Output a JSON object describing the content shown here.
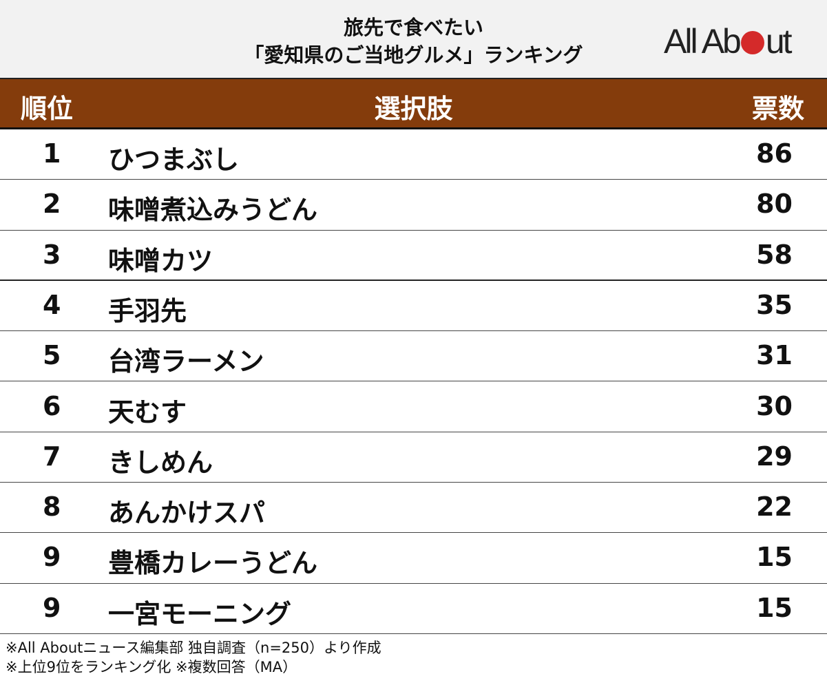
{
  "title": {
    "line1": "旅先で食べたい",
    "line2": "「愛知県のご当地グルメ」ランキング"
  },
  "logo": {
    "text_before": "All Ab",
    "text_after": "ut",
    "dot_color": "#d42a2a"
  },
  "colors": {
    "header_bg": "#843c0c",
    "title_bg": "#f2f2f2"
  },
  "chart_data": {
    "type": "table",
    "columns": [
      "順位",
      "選択肢",
      "票数"
    ],
    "rows": [
      {
        "rank": "1",
        "item": "ひつまぶし",
        "votes": "86"
      },
      {
        "rank": "2",
        "item": "味噌煮込みうどん",
        "votes": "80"
      },
      {
        "rank": "3",
        "item": "味噌カツ",
        "votes": "58"
      },
      {
        "rank": "4",
        "item": "手羽先",
        "votes": "35"
      },
      {
        "rank": "5",
        "item": "台湾ラーメン",
        "votes": "31"
      },
      {
        "rank": "6",
        "item": "天むす",
        "votes": "30"
      },
      {
        "rank": "7",
        "item": "きしめん",
        "votes": "29"
      },
      {
        "rank": "8",
        "item": "あんかけスパ",
        "votes": "22"
      },
      {
        "rank": "9",
        "item": "豊橋カレーうどん",
        "votes": "15"
      },
      {
        "rank": "9",
        "item": "一宮モーニング",
        "votes": "15"
      }
    ]
  },
  "footer": {
    "line1": "※All Aboutニュース編集部 独自調査（n=250）より作成",
    "line2": "※上位9位をランキング化 ※複数回答（MA）"
  }
}
